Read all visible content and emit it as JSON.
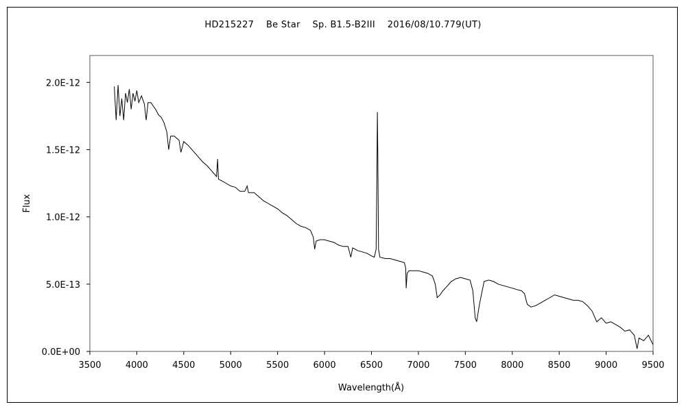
{
  "chart_data": {
    "type": "line",
    "title": "HD215227　 Be Star　 Sp. B1.5-B2III　 2016/08/10.779(UT)",
    "xlabel": "Wavelength(Å)",
    "ylabel": "Flux",
    "xlim": [
      3500,
      9500
    ],
    "ylim": [
      0,
      2.2e-12
    ],
    "x_ticks": [
      3500,
      4000,
      4500,
      5000,
      5500,
      6000,
      6500,
      7000,
      7500,
      8000,
      8500,
      9000,
      9500
    ],
    "x_tick_labels": [
      "3500",
      "4000",
      "4500",
      "5000",
      "5500",
      "6000",
      "6500",
      "7000",
      "7500",
      "8000",
      "8500",
      "9000",
      "9500"
    ],
    "y_ticks": [
      0,
      5e-13,
      1e-12,
      1.5e-12,
      2e-12
    ],
    "y_tick_labels": [
      "0.0E+00",
      "5.0E-13",
      "1.0E-12",
      "1.5E-12",
      "2.0E-12"
    ],
    "grid": false,
    "series": [
      {
        "color": "#000000",
        "points": [
          [
            3760,
            1.97e-12
          ],
          [
            3780,
            1.72e-12
          ],
          [
            3800,
            1.98e-12
          ],
          [
            3820,
            1.75e-12
          ],
          [
            3840,
            1.88e-12
          ],
          [
            3860,
            1.72e-12
          ],
          [
            3880,
            1.92e-12
          ],
          [
            3900,
            1.85e-12
          ],
          [
            3920,
            1.95e-12
          ],
          [
            3940,
            1.8e-12
          ],
          [
            3960,
            1.92e-12
          ],
          [
            3980,
            1.86e-12
          ],
          [
            4000,
            1.94e-12
          ],
          [
            4020,
            1.85e-12
          ],
          [
            4050,
            1.9e-12
          ],
          [
            4080,
            1.84e-12
          ],
          [
            4100,
            1.72e-12
          ],
          [
            4120,
            1.85e-12
          ],
          [
            4150,
            1.85e-12
          ],
          [
            4180,
            1.82e-12
          ],
          [
            4200,
            1.8e-12
          ],
          [
            4230,
            1.76e-12
          ],
          [
            4260,
            1.74e-12
          ],
          [
            4290,
            1.7e-12
          ],
          [
            4320,
            1.63e-12
          ],
          [
            4340,
            1.5e-12
          ],
          [
            4360,
            1.6e-12
          ],
          [
            4400,
            1.6e-12
          ],
          [
            4450,
            1.57e-12
          ],
          [
            4470,
            1.48e-12
          ],
          [
            4500,
            1.56e-12
          ],
          [
            4550,
            1.53e-12
          ],
          [
            4600,
            1.49e-12
          ],
          [
            4650,
            1.45e-12
          ],
          [
            4700,
            1.41e-12
          ],
          [
            4750,
            1.38e-12
          ],
          [
            4800,
            1.34e-12
          ],
          [
            4850,
            1.3e-12
          ],
          [
            4861,
            1.43e-12
          ],
          [
            4870,
            1.28e-12
          ],
          [
            4900,
            1.27e-12
          ],
          [
            4950,
            1.25e-12
          ],
          [
            5000,
            1.23e-12
          ],
          [
            5050,
            1.22e-12
          ],
          [
            5100,
            1.19e-12
          ],
          [
            5150,
            1.19e-12
          ],
          [
            5175,
            1.23e-12
          ],
          [
            5190,
            1.18e-12
          ],
          [
            5250,
            1.18e-12
          ],
          [
            5300,
            1.15e-12
          ],
          [
            5350,
            1.12e-12
          ],
          [
            5400,
            1.1e-12
          ],
          [
            5450,
            1.08e-12
          ],
          [
            5500,
            1.06e-12
          ],
          [
            5550,
            1.03e-12
          ],
          [
            5600,
            1.01e-12
          ],
          [
            5650,
            9.8e-13
          ],
          [
            5700,
            9.5e-13
          ],
          [
            5750,
            9.3e-13
          ],
          [
            5800,
            9.2e-13
          ],
          [
            5850,
            9e-13
          ],
          [
            5880,
            8.5e-13
          ],
          [
            5895,
            7.6e-13
          ],
          [
            5910,
            8.2e-13
          ],
          [
            5950,
            8.3e-13
          ],
          [
            6000,
            8.3e-13
          ],
          [
            6050,
            8.2e-13
          ],
          [
            6100,
            8.1e-13
          ],
          [
            6150,
            7.9e-13
          ],
          [
            6200,
            7.8e-13
          ],
          [
            6250,
            7.8e-13
          ],
          [
            6280,
            7e-13
          ],
          [
            6300,
            7.7e-13
          ],
          [
            6350,
            7.5e-13
          ],
          [
            6400,
            7.4e-13
          ],
          [
            6450,
            7.3e-13
          ],
          [
            6500,
            7.1e-13
          ],
          [
            6530,
            7e-13
          ],
          [
            6550,
            7.6e-13
          ],
          [
            6558,
            1.3e-12
          ],
          [
            6563,
            1.78e-12
          ],
          [
            6568,
            1.45e-12
          ],
          [
            6575,
            7.6e-13
          ],
          [
            6590,
            7e-13
          ],
          [
            6650,
            6.9e-13
          ],
          [
            6700,
            6.9e-13
          ],
          [
            6750,
            6.8e-13
          ],
          [
            6800,
            6.7e-13
          ],
          [
            6850,
            6.6e-13
          ],
          [
            6865,
            6.2e-13
          ],
          [
            6870,
            4.7e-13
          ],
          [
            6880,
            5.8e-13
          ],
          [
            6900,
            6e-13
          ],
          [
            6950,
            6e-13
          ],
          [
            7000,
            6e-13
          ],
          [
            7050,
            5.9e-13
          ],
          [
            7100,
            5.8e-13
          ],
          [
            7150,
            5.6e-13
          ],
          [
            7180,
            5e-13
          ],
          [
            7200,
            4e-13
          ],
          [
            7230,
            4.2e-13
          ],
          [
            7260,
            4.5e-13
          ],
          [
            7300,
            4.8e-13
          ],
          [
            7350,
            5.2e-13
          ],
          [
            7400,
            5.4e-13
          ],
          [
            7450,
            5.5e-13
          ],
          [
            7500,
            5.4e-13
          ],
          [
            7550,
            5.3e-13
          ],
          [
            7580,
            4.5e-13
          ],
          [
            7605,
            2.5e-13
          ],
          [
            7620,
            2.2e-13
          ],
          [
            7650,
            3.5e-13
          ],
          [
            7700,
            5.2e-13
          ],
          [
            7750,
            5.3e-13
          ],
          [
            7800,
            5.2e-13
          ],
          [
            7850,
            5e-13
          ],
          [
            7900,
            4.9e-13
          ],
          [
            7950,
            4.8e-13
          ],
          [
            8000,
            4.7e-13
          ],
          [
            8050,
            4.6e-13
          ],
          [
            8100,
            4.5e-13
          ],
          [
            8130,
            4.3e-13
          ],
          [
            8160,
            3.5e-13
          ],
          [
            8200,
            3.3e-13
          ],
          [
            8250,
            3.4e-13
          ],
          [
            8300,
            3.6e-13
          ],
          [
            8350,
            3.8e-13
          ],
          [
            8400,
            4e-13
          ],
          [
            8450,
            4.2e-13
          ],
          [
            8500,
            4.1e-13
          ],
          [
            8550,
            4e-13
          ],
          [
            8600,
            3.9e-13
          ],
          [
            8650,
            3.8e-13
          ],
          [
            8700,
            3.8e-13
          ],
          [
            8750,
            3.7e-13
          ],
          [
            8800,
            3.4e-13
          ],
          [
            8850,
            3e-13
          ],
          [
            8900,
            2.2e-13
          ],
          [
            8950,
            2.5e-13
          ],
          [
            9000,
            2.1e-13
          ],
          [
            9050,
            2.2e-13
          ],
          [
            9100,
            2e-13
          ],
          [
            9150,
            1.8e-13
          ],
          [
            9200,
            1.5e-13
          ],
          [
            9250,
            1.6e-13
          ],
          [
            9300,
            1.2e-13
          ],
          [
            9330,
            2e-14
          ],
          [
            9350,
            1e-13
          ],
          [
            9400,
            8e-14
          ],
          [
            9450,
            1.2e-13
          ],
          [
            9500,
            5e-14
          ]
        ]
      }
    ]
  }
}
